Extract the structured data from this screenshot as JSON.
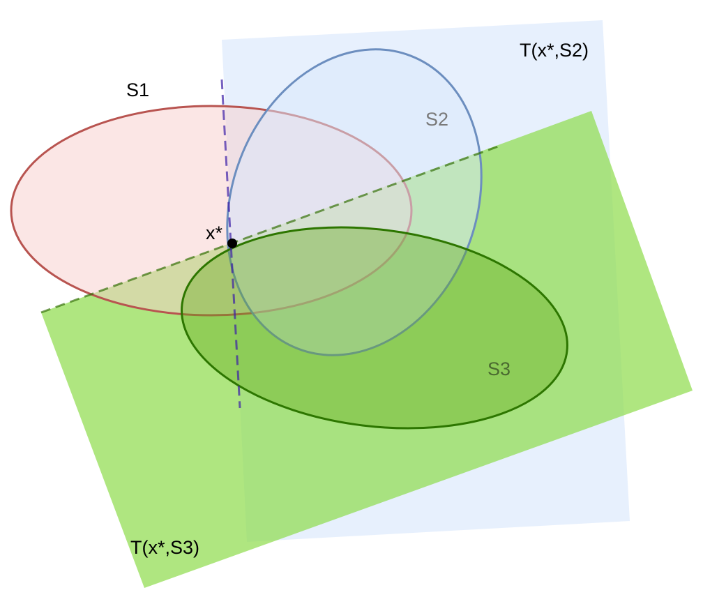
{
  "labels": {
    "s1": "S1",
    "s2": "S2",
    "s3": "S3",
    "point": "x*",
    "tangent_s2": "T(x*,S2)",
    "tangent_s3": "T(x*,S3)"
  },
  "colors": {
    "s1_stroke": "#b85450",
    "s1_fill": "#f8cecc",
    "s2_stroke": "#6c8ebf",
    "s2_fill": "#dae8fc",
    "s3_stroke": "#2d7600",
    "s3_fill": "#60a917",
    "tangent_s2_fill": "#dae8fc",
    "tangent_s3_fill": "#8ddb4a",
    "tangent_s2_line": "#3b1fa8",
    "tangent_s3_line": "#2d6a00",
    "point": "#000000"
  }
}
